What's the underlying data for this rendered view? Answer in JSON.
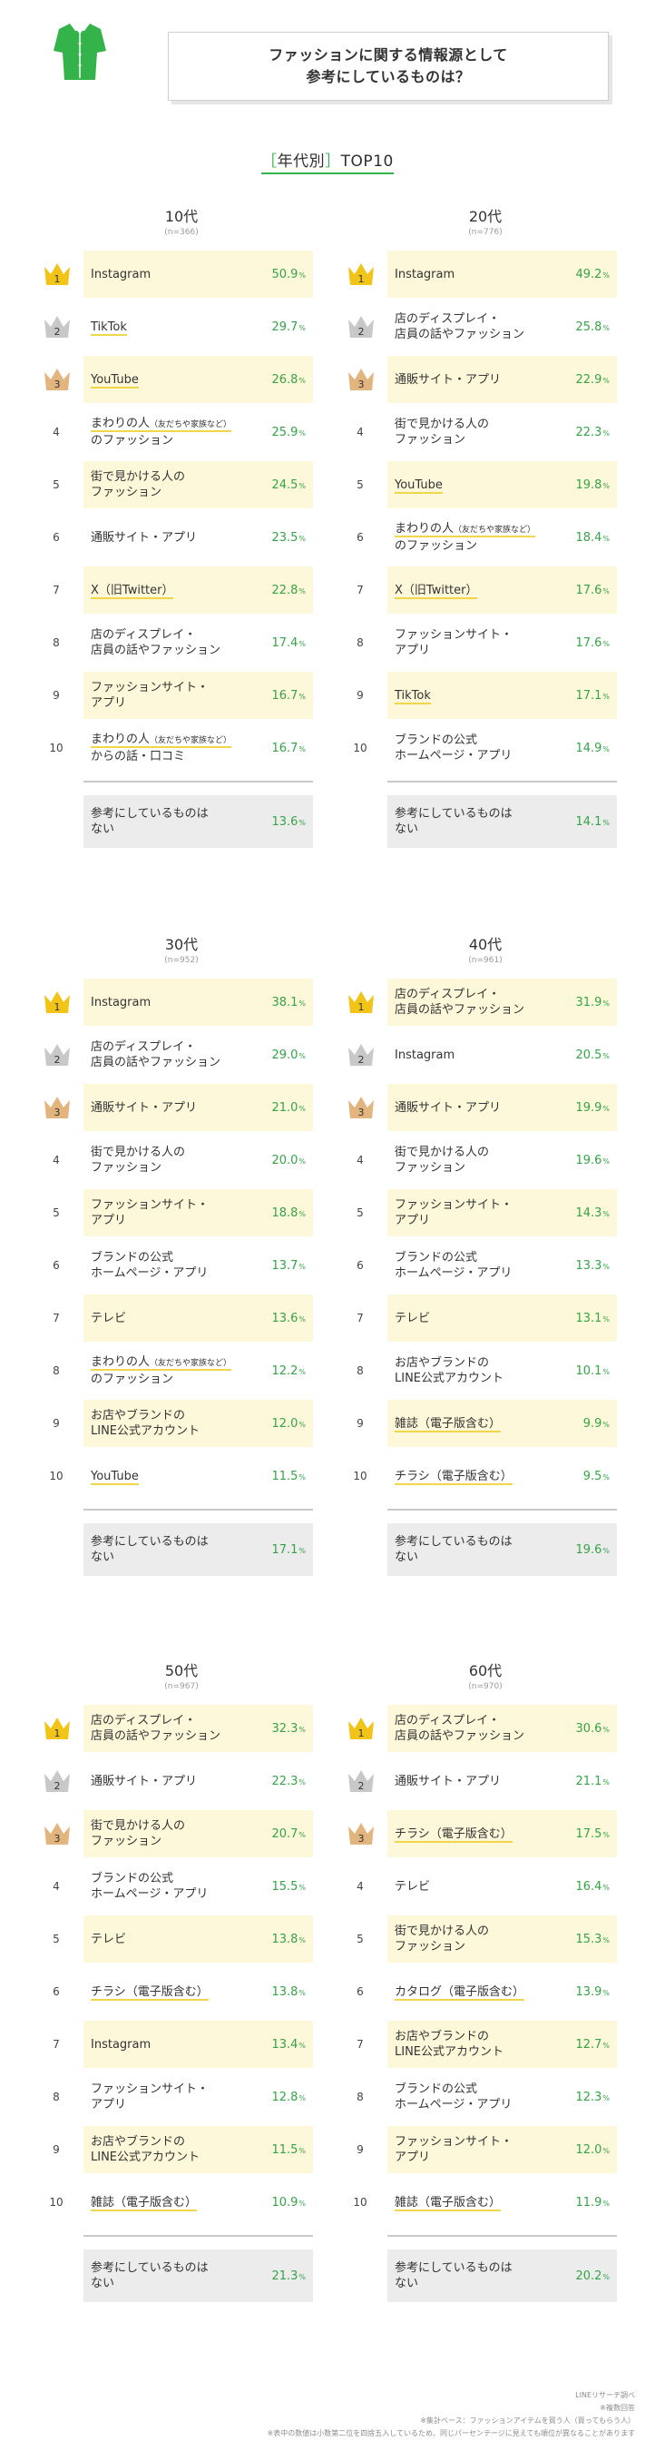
{
  "header": {
    "title_line1": "ファッションに関する情報源として",
    "title_line2": "参考にしているものは？",
    "icon": "shirt-icon"
  },
  "subtitle": {
    "open": "［",
    "text": "年代別",
    "close": "］",
    "suffix": "TOP10"
  },
  "colors": {
    "accent": "#34b34a",
    "highlight": "#fdf8d9",
    "gold": "#f2c418",
    "silver": "#c8c8c8",
    "bronze": "#e2b47e",
    "value": "#34a447"
  },
  "chart_data": [
    {
      "type": "table",
      "group": "10代",
      "n": "(n=366)",
      "rows": [
        {
          "rank": "1",
          "label": [
            "Instagram"
          ],
          "value": "50.9"
        },
        {
          "rank": "2",
          "label": [
            "TikTok"
          ],
          "value": "29.7"
        },
        {
          "rank": "3",
          "label": [
            "YouTube"
          ],
          "value": "26.8"
        },
        {
          "rank": "4",
          "label": [
            "まわりの人",
            "（友だちや家族など）",
            "のファッション"
          ],
          "value": "25.9"
        },
        {
          "rank": "5",
          "label": [
            "街で見かける人の",
            "ファッション"
          ],
          "value": "24.5"
        },
        {
          "rank": "6",
          "label": [
            "通販サイト・アプリ"
          ],
          "value": "23.5"
        },
        {
          "rank": "7",
          "label": [
            "X（旧Twitter）"
          ],
          "value": "22.8"
        },
        {
          "rank": "8",
          "label": [
            "店のディスプレイ・",
            "店員の話やファッション"
          ],
          "value": "17.4"
        },
        {
          "rank": "9",
          "label": [
            "ファッションサイト・",
            "アプリ"
          ],
          "value": "16.7"
        },
        {
          "rank": "10",
          "label": [
            "まわりの人",
            "（友だちや家族など）",
            "からの話・口コミ"
          ],
          "value": "16.7"
        }
      ],
      "other": {
        "label": [
          "参考にしているものは",
          "ない"
        ],
        "value": "13.6"
      }
    },
    {
      "type": "table",
      "group": "20代",
      "n": "(n=776)",
      "rows": [
        {
          "rank": "1",
          "label": [
            "Instagram"
          ],
          "value": "49.2"
        },
        {
          "rank": "2",
          "label": [
            "店のディスプレイ・",
            "店員の話やファッション"
          ],
          "value": "25.8"
        },
        {
          "rank": "3",
          "label": [
            "通販サイト・アプリ"
          ],
          "value": "22.9"
        },
        {
          "rank": "4",
          "label": [
            "街で見かける人の",
            "ファッション"
          ],
          "value": "22.3"
        },
        {
          "rank": "5",
          "label": [
            "YouTube"
          ],
          "value": "19.8"
        },
        {
          "rank": "6",
          "label": [
            "まわりの人",
            "（友だちや家族など）",
            "のファッション"
          ],
          "value": "18.4"
        },
        {
          "rank": "7",
          "label": [
            "X（旧Twitter）"
          ],
          "value": "17.6"
        },
        {
          "rank": "8",
          "label": [
            "ファッションサイト・",
            "アプリ"
          ],
          "value": "17.6"
        },
        {
          "rank": "9",
          "label": [
            "TikTok"
          ],
          "value": "17.1"
        },
        {
          "rank": "10",
          "label": [
            "ブランドの公式",
            "ホームページ・アプリ"
          ],
          "value": "14.9"
        }
      ],
      "other": {
        "label": [
          "参考にしているものは",
          "ない"
        ],
        "value": "14.1"
      }
    },
    {
      "type": "table",
      "group": "30代",
      "n": "(n=952)",
      "rows": [
        {
          "rank": "1",
          "label": [
            "Instagram"
          ],
          "value": "38.1"
        },
        {
          "rank": "2",
          "label": [
            "店のディスプレイ・",
            "店員の話やファッション"
          ],
          "value": "29.0"
        },
        {
          "rank": "3",
          "label": [
            "通販サイト・アプリ"
          ],
          "value": "21.0"
        },
        {
          "rank": "4",
          "label": [
            "街で見かける人の",
            "ファッション"
          ],
          "value": "20.0"
        },
        {
          "rank": "5",
          "label": [
            "ファッションサイト・",
            "アプリ"
          ],
          "value": "18.8"
        },
        {
          "rank": "6",
          "label": [
            "ブランドの公式",
            "ホームページ・アプリ"
          ],
          "value": "13.7"
        },
        {
          "rank": "7",
          "label": [
            "テレビ"
          ],
          "value": "13.6"
        },
        {
          "rank": "8",
          "label": [
            "まわりの人",
            "（友だちや家族など）",
            "のファッション"
          ],
          "value": "12.2"
        },
        {
          "rank": "9",
          "label": [
            "お店やブランドの",
            "LINE公式アカウント"
          ],
          "value": "12.0"
        },
        {
          "rank": "10",
          "label": [
            "YouTube"
          ],
          "value": "11.5"
        }
      ],
      "other": {
        "label": [
          "参考にしているものは",
          "ない"
        ],
        "value": "17.1"
      }
    },
    {
      "type": "table",
      "group": "40代",
      "n": "(n=961)",
      "rows": [
        {
          "rank": "1",
          "label": [
            "店のディスプレイ・",
            "店員の話やファッション"
          ],
          "value": "31.9"
        },
        {
          "rank": "2",
          "label": [
            "Instagram"
          ],
          "value": "20.5"
        },
        {
          "rank": "3",
          "label": [
            "通販サイト・アプリ"
          ],
          "value": "19.9"
        },
        {
          "rank": "4",
          "label": [
            "街で見かける人の",
            "ファッション"
          ],
          "value": "19.6"
        },
        {
          "rank": "5",
          "label": [
            "ファッションサイト・",
            "アプリ"
          ],
          "value": "14.3"
        },
        {
          "rank": "6",
          "label": [
            "ブランドの公式",
            "ホームページ・アプリ"
          ],
          "value": "13.3"
        },
        {
          "rank": "7",
          "label": [
            "テレビ"
          ],
          "value": "13.1"
        },
        {
          "rank": "8",
          "label": [
            "お店やブランドの",
            "LINE公式アカウント"
          ],
          "value": "10.1"
        },
        {
          "rank": "9",
          "label": [
            "雑誌（電子版含む）"
          ],
          "value": "9.9"
        },
        {
          "rank": "10",
          "label": [
            "チラシ（電子版含む）"
          ],
          "value": "9.5"
        }
      ],
      "other": {
        "label": [
          "参考にしているものは",
          "ない"
        ],
        "value": "19.6"
      }
    },
    {
      "type": "table",
      "group": "50代",
      "n": "(n=967)",
      "rows": [
        {
          "rank": "1",
          "label": [
            "店のディスプレイ・",
            "店員の話やファッション"
          ],
          "value": "32.3"
        },
        {
          "rank": "2",
          "label": [
            "通販サイト・アプリ"
          ],
          "value": "22.3"
        },
        {
          "rank": "3",
          "label": [
            "街で見かける人の",
            "ファッション"
          ],
          "value": "20.7"
        },
        {
          "rank": "4",
          "label": [
            "ブランドの公式",
            "ホームページ・アプリ"
          ],
          "value": "15.5"
        },
        {
          "rank": "5",
          "label": [
            "テレビ"
          ],
          "value": "13.8"
        },
        {
          "rank": "6",
          "label": [
            "チラシ（電子版含む）"
          ],
          "value": "13.8"
        },
        {
          "rank": "7",
          "label": [
            "Instagram"
          ],
          "value": "13.4"
        },
        {
          "rank": "8",
          "label": [
            "ファッションサイト・",
            "アプリ"
          ],
          "value": "12.8"
        },
        {
          "rank": "9",
          "label": [
            "お店やブランドの",
            "LINE公式アカウント"
          ],
          "value": "11.5"
        },
        {
          "rank": "10",
          "label": [
            "雑誌（電子版含む）"
          ],
          "value": "10.9"
        }
      ],
      "other": {
        "label": [
          "参考にしているものは",
          "ない"
        ],
        "value": "21.3"
      }
    },
    {
      "type": "table",
      "group": "60代",
      "n": "(n=970)",
      "rows": [
        {
          "rank": "1",
          "label": [
            "店のディスプレイ・",
            "店員の話やファッション"
          ],
          "value": "30.6"
        },
        {
          "rank": "2",
          "label": [
            "通販サイト・アプリ"
          ],
          "value": "21.1"
        },
        {
          "rank": "3",
          "label": [
            "チラシ（電子版含む）"
          ],
          "value": "17.5"
        },
        {
          "rank": "4",
          "label": [
            "テレビ"
          ],
          "value": "16.4"
        },
        {
          "rank": "5",
          "label": [
            "街で見かける人の",
            "ファッション"
          ],
          "value": "15.3"
        },
        {
          "rank": "6",
          "label": [
            "カタログ（電子版含む）"
          ],
          "value": "13.9"
        },
        {
          "rank": "7",
          "label": [
            "お店やブランドの",
            "LINE公式アカウント"
          ],
          "value": "12.7"
        },
        {
          "rank": "8",
          "label": [
            "ブランドの公式",
            "ホームページ・アプリ"
          ],
          "value": "12.3"
        },
        {
          "rank": "9",
          "label": [
            "ファッションサイト・",
            "アプリ"
          ],
          "value": "12.0"
        },
        {
          "rank": "10",
          "label": [
            "雑誌（電子版含む）"
          ],
          "value": "11.9"
        }
      ],
      "other": {
        "label": [
          "参考にしているものは",
          "ない"
        ],
        "value": "20.2"
      }
    }
  ],
  "pct_unit": "%",
  "notes": [
    "LINEリサーチ調べ",
    "※複数回答",
    "※集計ベース：ファッションアイテムを買う人（買ってもらう人）",
    "※表中の数値は小数第二位を四捨五入しているため、同じパーセンテージに見えても順位が異なることがあります"
  ]
}
